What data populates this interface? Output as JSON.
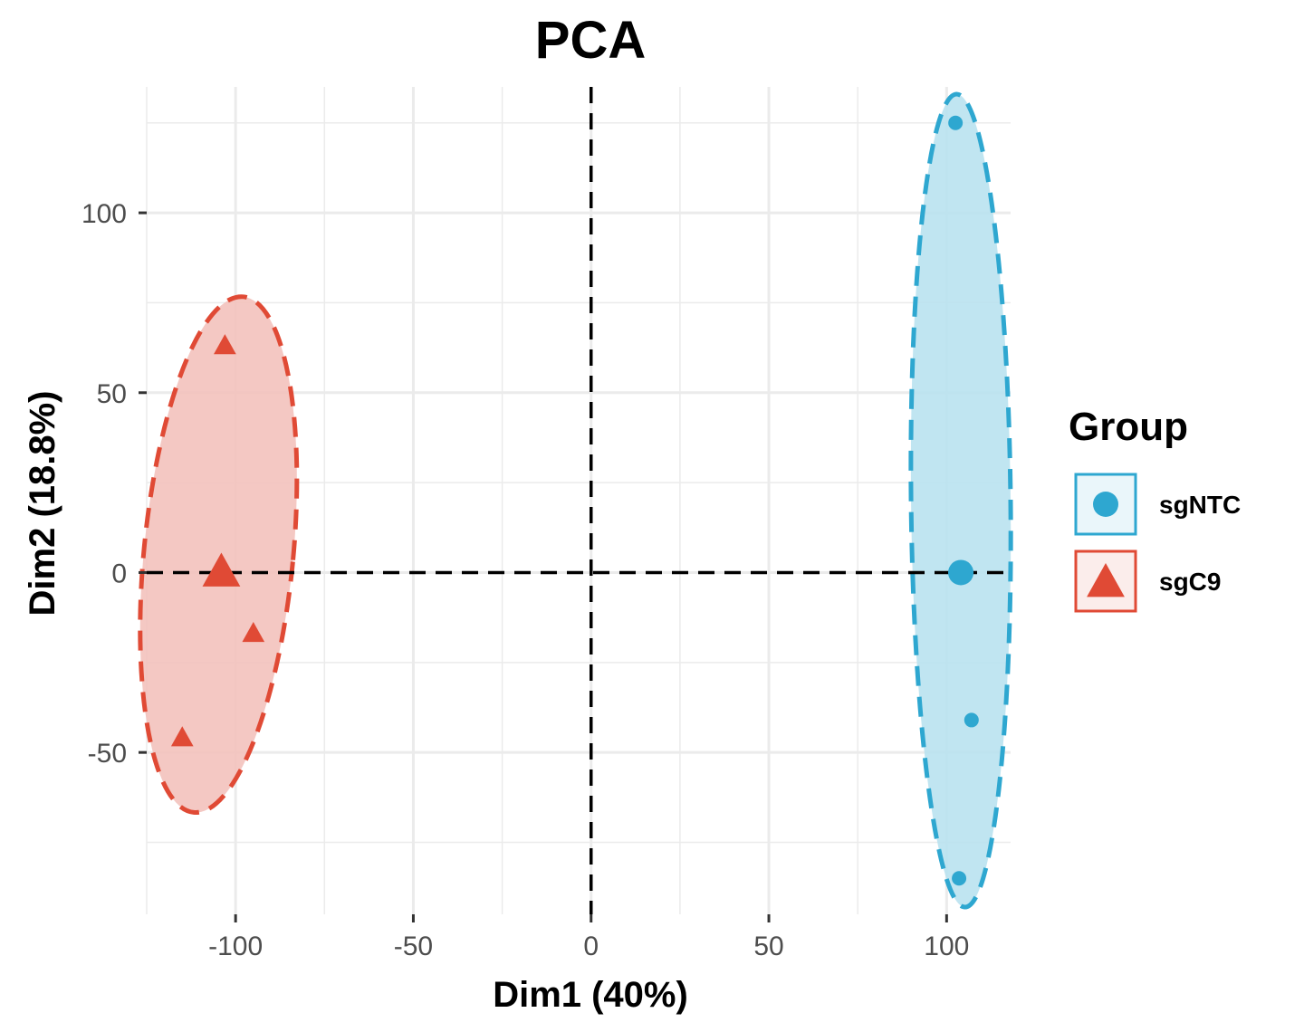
{
  "chart_data": {
    "type": "scatter",
    "title": "PCA",
    "xlabel": "Dim1 (40%)",
    "ylabel": "Dim2 (18.8%)",
    "xlim": [
      -125,
      118
    ],
    "ylim": [
      -95,
      135
    ],
    "xticks": [
      -100,
      -50,
      0,
      50,
      100
    ],
    "yticks": [
      -50,
      0,
      50,
      100
    ],
    "xtick_labels": [
      "-100",
      "-50",
      "0",
      "50",
      "100"
    ],
    "ytick_labels": [
      "-50",
      "0",
      "50",
      "100"
    ],
    "grid": true,
    "reference_lines": {
      "x": 0,
      "y": 0,
      "style": "dashed"
    },
    "legend": {
      "title": "Group",
      "placement": "right",
      "entries": [
        "sgNTC",
        "sgC9"
      ]
    },
    "series": [
      {
        "name": "sgNTC",
        "color": "#2ea7d0",
        "fill": "#b9e2ef",
        "marker": "circle",
        "points": [
          {
            "x": 102.5,
            "y": 125
          },
          {
            "x": 107,
            "y": -41
          },
          {
            "x": 103.5,
            "y": -85
          }
        ],
        "centroid": {
          "x": 104,
          "y": 0
        },
        "ellipse": {
          "cx": 104,
          "cy": 20,
          "rx": 14,
          "ry": 113,
          "tilt": -0.6
        }
      },
      {
        "name": "sgC9",
        "color": "#e04a35",
        "fill": "#f3c2bd",
        "marker": "triangle",
        "points": [
          {
            "x": -103,
            "y": 63
          },
          {
            "x": -95,
            "y": -17
          },
          {
            "x": -115,
            "y": -46
          }
        ],
        "centroid": {
          "x": -104,
          "y": 0
        },
        "ellipse": {
          "cx": -104.8,
          "cy": 5,
          "rx": 21,
          "ry": 72,
          "tilt": 5.5
        }
      }
    ]
  }
}
